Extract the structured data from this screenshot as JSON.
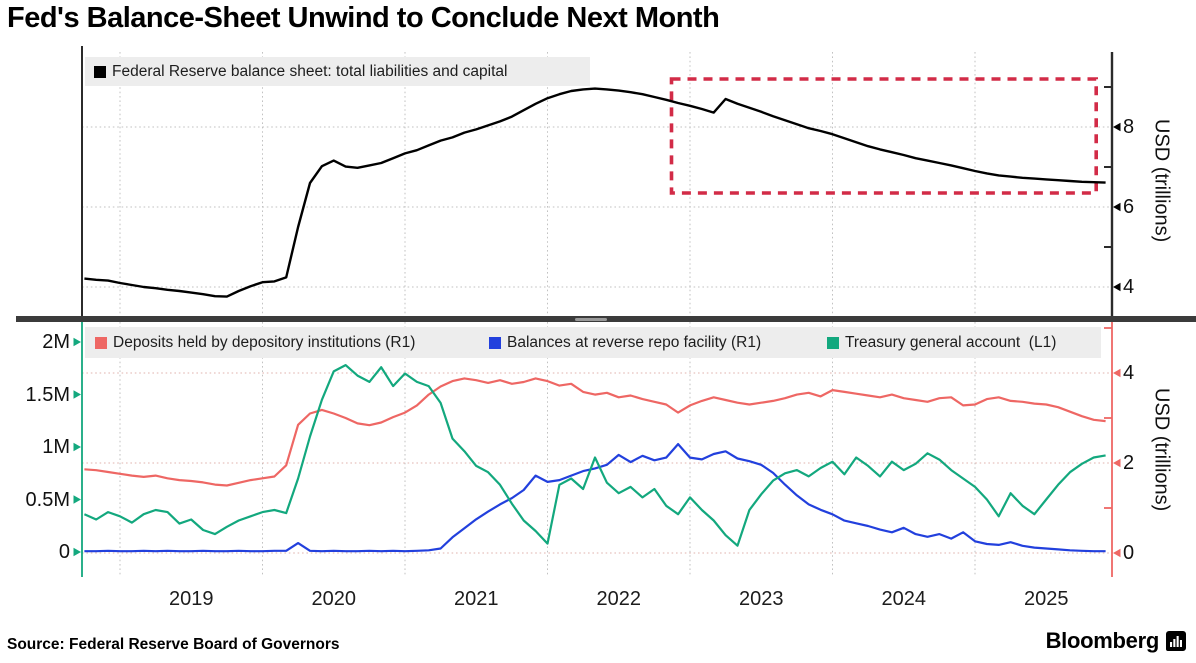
{
  "title": "Fed's Balance-Sheet Unwind to Conclude Next Month",
  "source": "Source: Federal Reserve Board of Governors",
  "brand": {
    "name": "Bloomberg",
    "icon": "bloomberg-mark-icon"
  },
  "colors": {
    "black": "#000000",
    "red": "#ee6764",
    "blue": "#2240dd",
    "green": "#13a87e",
    "rect": "#d22b47",
    "grid": "#c2c2c2",
    "grid_accent": "#e0b3ae",
    "legend_bg": "#ededed",
    "divider": "#3b3b3b",
    "handle": "#9a9a9a",
    "spine": "#2b2b2b",
    "text": "#111111"
  },
  "x_axis": {
    "ticks": [
      {
        "year": 2019,
        "label": "2019"
      },
      {
        "year": 2020,
        "label": "2020"
      },
      {
        "year": 2021,
        "label": "2021"
      },
      {
        "year": 2022,
        "label": "2022"
      },
      {
        "year": 2023,
        "label": "2023"
      },
      {
        "year": 2024,
        "label": "2024"
      },
      {
        "year": 2025,
        "label": "2025"
      }
    ]
  },
  "chart_data": [
    {
      "type": "line",
      "panel": "top",
      "x_range": [
        2018.73,
        2025.95
      ],
      "y_axis": {
        "side": "right",
        "title": "USD (trillions)",
        "major_ticks": [
          {
            "v": 4,
            "label": "4"
          },
          {
            "v": 6,
            "label": "6"
          },
          {
            "v": 8,
            "label": "8"
          }
        ],
        "minor_ticks": [
          5,
          7,
          9
        ],
        "range_approx": [
          3.3,
          9.9
        ],
        "grid": "dotted"
      },
      "annotation": {
        "type": "dashed-box",
        "x0": 2022.87,
        "x1": 2025.85,
        "y0": 6.35,
        "y1": 9.2,
        "color": "rect"
      },
      "series": [
        {
          "name": "fed-balance-sheet-total",
          "label": "Federal Reserve balance sheet: total liabilities and capital",
          "color": "black",
          "unit": "USD trillions",
          "x_start": 2018.75,
          "x_step": 0.0833333,
          "values": [
            4.21,
            4.18,
            4.16,
            4.1,
            4.05,
            4.0,
            3.97,
            3.93,
            3.9,
            3.86,
            3.82,
            3.77,
            3.76,
            3.9,
            4.02,
            4.12,
            4.14,
            4.24,
            5.5,
            6.6,
            7.02,
            7.16,
            7.01,
            6.98,
            7.04,
            7.1,
            7.22,
            7.34,
            7.42,
            7.54,
            7.66,
            7.74,
            7.86,
            7.94,
            8.04,
            8.14,
            8.26,
            8.42,
            8.58,
            8.72,
            8.82,
            8.9,
            8.94,
            8.96,
            8.94,
            8.91,
            8.87,
            8.82,
            8.75,
            8.68,
            8.6,
            8.53,
            8.45,
            8.36,
            8.7,
            8.58,
            8.48,
            8.38,
            8.27,
            8.17,
            8.07,
            7.97,
            7.9,
            7.82,
            7.72,
            7.62,
            7.52,
            7.44,
            7.37,
            7.3,
            7.22,
            7.16,
            7.1,
            7.04,
            6.97,
            6.9,
            6.84,
            6.79,
            6.76,
            6.73,
            6.71,
            6.69,
            6.67,
            6.65,
            6.63,
            6.62,
            6.61
          ]
        }
      ]
    },
    {
      "type": "line",
      "panel": "bottom",
      "x_range": [
        2018.73,
        2025.95
      ],
      "left_axis": {
        "side": "left",
        "title": "",
        "unit": "millions (USD)",
        "major_ticks": [
          {
            "v": 0,
            "label": "0"
          },
          {
            "v": 0.5,
            "label": "0.5M"
          },
          {
            "v": 1,
            "label": "1M"
          },
          {
            "v": 1.5,
            "label": "1.5M"
          },
          {
            "v": 2,
            "label": "2M"
          }
        ]
      },
      "right_axis": {
        "side": "right",
        "title": "USD (trillions)",
        "major_ticks": [
          {
            "v": 0,
            "label": "0"
          },
          {
            "v": 2,
            "label": "2"
          },
          {
            "v": 4,
            "label": "4"
          }
        ],
        "minor_ticks": [
          1,
          3,
          5
        ]
      },
      "series": [
        {
          "name": "deposits-depository-institutions",
          "label": "Deposits held by depository institutions (R1)",
          "axis": "right",
          "color": "red",
          "unit": "USD trillions",
          "x_start": 2018.75,
          "x_step": 0.0833333,
          "values": [
            1.86,
            1.84,
            1.8,
            1.76,
            1.72,
            1.69,
            1.72,
            1.66,
            1.62,
            1.6,
            1.57,
            1.52,
            1.5,
            1.56,
            1.62,
            1.66,
            1.7,
            1.95,
            2.85,
            3.1,
            3.18,
            3.1,
            3.0,
            2.88,
            2.84,
            2.9,
            3.02,
            3.12,
            3.28,
            3.52,
            3.7,
            3.82,
            3.88,
            3.84,
            3.78,
            3.84,
            3.76,
            3.8,
            3.88,
            3.82,
            3.72,
            3.76,
            3.58,
            3.52,
            3.56,
            3.46,
            3.5,
            3.42,
            3.36,
            3.3,
            3.12,
            3.28,
            3.38,
            3.46,
            3.4,
            3.34,
            3.3,
            3.34,
            3.38,
            3.44,
            3.52,
            3.56,
            3.48,
            3.62,
            3.58,
            3.54,
            3.5,
            3.46,
            3.52,
            3.44,
            3.4,
            3.36,
            3.44,
            3.46,
            3.28,
            3.3,
            3.42,
            3.46,
            3.38,
            3.36,
            3.32,
            3.3,
            3.24,
            3.14,
            3.04,
            2.96,
            2.93
          ]
        },
        {
          "name": "reverse-repo-balances",
          "label": "Balances at reverse repo facility (R1)",
          "axis": "right",
          "color": "blue",
          "unit": "USD trillions",
          "x_start": 2018.75,
          "x_step": 0.0833333,
          "values": [
            0.04,
            0.04,
            0.05,
            0.04,
            0.04,
            0.05,
            0.04,
            0.05,
            0.04,
            0.04,
            0.05,
            0.04,
            0.04,
            0.05,
            0.04,
            0.04,
            0.05,
            0.05,
            0.22,
            0.05,
            0.04,
            0.05,
            0.04,
            0.04,
            0.05,
            0.04,
            0.05,
            0.04,
            0.05,
            0.06,
            0.1,
            0.35,
            0.55,
            0.75,
            0.92,
            1.08,
            1.22,
            1.4,
            1.72,
            1.58,
            1.62,
            1.72,
            1.82,
            1.88,
            1.96,
            2.18,
            2.02,
            2.16,
            2.06,
            2.12,
            2.42,
            2.12,
            2.08,
            2.2,
            2.26,
            2.1,
            2.04,
            1.96,
            1.78,
            1.52,
            1.28,
            1.08,
            0.96,
            0.86,
            0.72,
            0.66,
            0.6,
            0.52,
            0.46,
            0.56,
            0.42,
            0.36,
            0.42,
            0.32,
            0.46,
            0.26,
            0.2,
            0.18,
            0.24,
            0.16,
            0.12,
            0.1,
            0.08,
            0.06,
            0.05,
            0.04,
            0.04
          ]
        },
        {
          "name": "treasury-general-account",
          "label": "Treasury general account  (L1)",
          "axis": "left",
          "color": "green",
          "unit": "millions (USD)",
          "x_start": 2018.75,
          "x_step": 0.0833333,
          "values": [
            0.36,
            0.31,
            0.38,
            0.34,
            0.28,
            0.36,
            0.4,
            0.38,
            0.27,
            0.31,
            0.21,
            0.17,
            0.24,
            0.3,
            0.34,
            0.38,
            0.4,
            0.37,
            0.7,
            1.1,
            1.45,
            1.72,
            1.78,
            1.68,
            1.62,
            1.76,
            1.58,
            1.7,
            1.62,
            1.58,
            1.42,
            1.08,
            0.96,
            0.82,
            0.76,
            0.64,
            0.46,
            0.3,
            0.2,
            0.08,
            0.64,
            0.7,
            0.6,
            0.9,
            0.66,
            0.56,
            0.62,
            0.52,
            0.6,
            0.44,
            0.36,
            0.52,
            0.4,
            0.3,
            0.16,
            0.06,
            0.4,
            0.55,
            0.68,
            0.75,
            0.78,
            0.72,
            0.8,
            0.86,
            0.74,
            0.9,
            0.82,
            0.72,
            0.86,
            0.78,
            0.84,
            0.94,
            0.88,
            0.78,
            0.7,
            0.62,
            0.5,
            0.34,
            0.56,
            0.44,
            0.36,
            0.5,
            0.64,
            0.76,
            0.84,
            0.9,
            0.92
          ]
        }
      ]
    }
  ]
}
